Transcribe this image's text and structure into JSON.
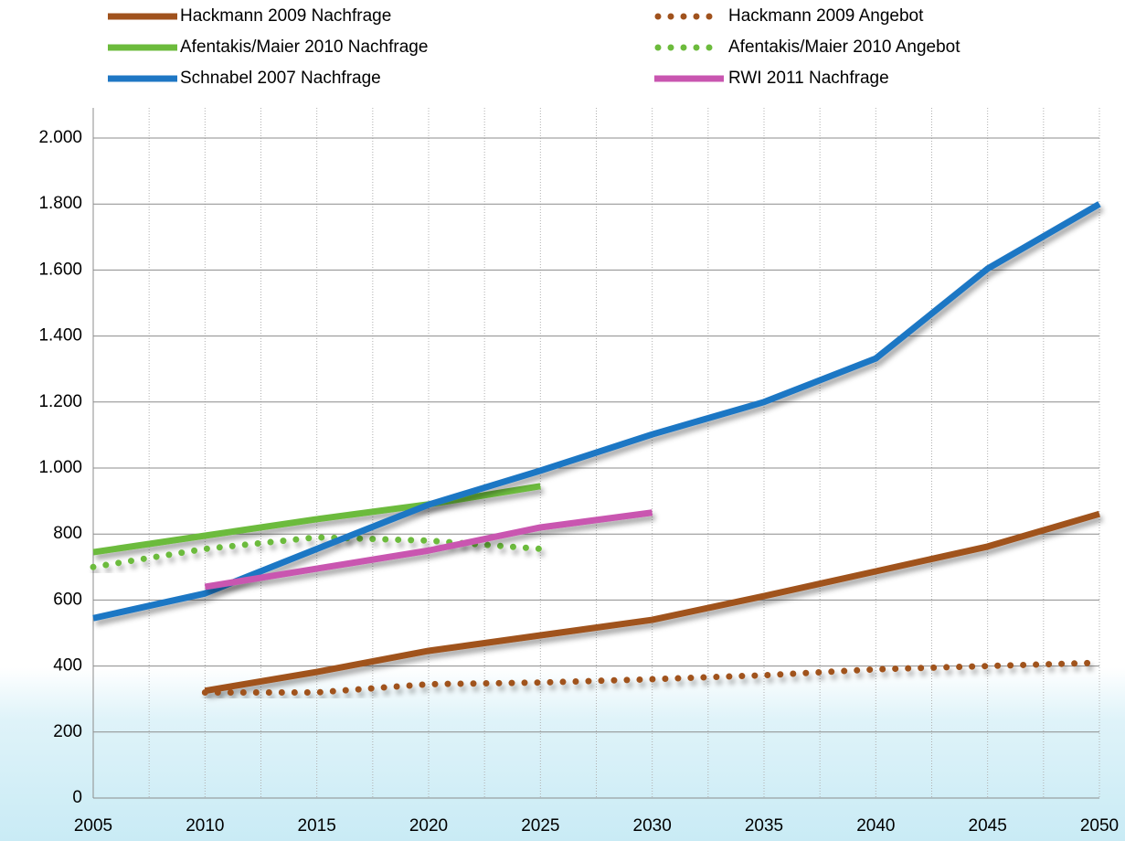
{
  "chart_data": {
    "type": "line",
    "x": [
      2005,
      2010,
      2015,
      2020,
      2025,
      2030,
      2035,
      2040,
      2045,
      2050
    ],
    "xlim": [
      2005,
      2050
    ],
    "xticks": [
      2005,
      2010,
      2015,
      2020,
      2025,
      2030,
      2035,
      2040,
      2045,
      2050
    ],
    "ylim": [
      0,
      2000
    ],
    "yticks": [
      0,
      200,
      400,
      600,
      800,
      {
        "value": 1000,
        "label": "1.000"
      },
      {
        "value": 1200,
        "label": "1.200"
      },
      {
        "value": 1400,
        "label": "1.400"
      },
      {
        "value": 1600,
        "label": "1.600"
      },
      {
        "value": 1800,
        "label": "1.800"
      },
      {
        "value": 2000,
        "label": "2.000"
      }
    ],
    "grid": true,
    "series": [
      {
        "name": "Hackmann 2009 Nachfrage",
        "color": "#a0521d",
        "style": "solid",
        "values": [
          null,
          325,
          382,
          446,
          493,
          540,
          612,
          687,
          762,
          861
        ]
      },
      {
        "name": "Hackmann 2009 Angebot",
        "color": "#a0521d",
        "style": "dotted",
        "values": [
          null,
          320,
          320,
          345,
          350,
          360,
          372,
          390,
          400,
          410
        ]
      },
      {
        "name": "Afentakis/Maier 2010 Nachfrage",
        "color": "#6cbb3c",
        "style": "solid",
        "values": [
          745,
          795,
          845,
          890,
          945,
          null,
          null,
          null,
          null,
          null
        ]
      },
      {
        "name": "Afentakis/Maier 2010 Angebot",
        "color": "#6cbb3c",
        "style": "dotted",
        "values": [
          700,
          755,
          790,
          780,
          755,
          null,
          null,
          null,
          null,
          null
        ]
      },
      {
        "name": "Schnabel 2007 Nachfrage",
        "color": "#1f77c4",
        "style": "solid",
        "values": [
          545,
          620,
          755,
          889,
          992,
          1102,
          1200,
          1332,
          1604,
          1800
        ]
      },
      {
        "name": "RWI 2011 Nachfrage",
        "color": "#c956b0",
        "style": "solid",
        "values": [
          null,
          640,
          695,
          750,
          820,
          865,
          null,
          null,
          null,
          null
        ]
      }
    ]
  }
}
